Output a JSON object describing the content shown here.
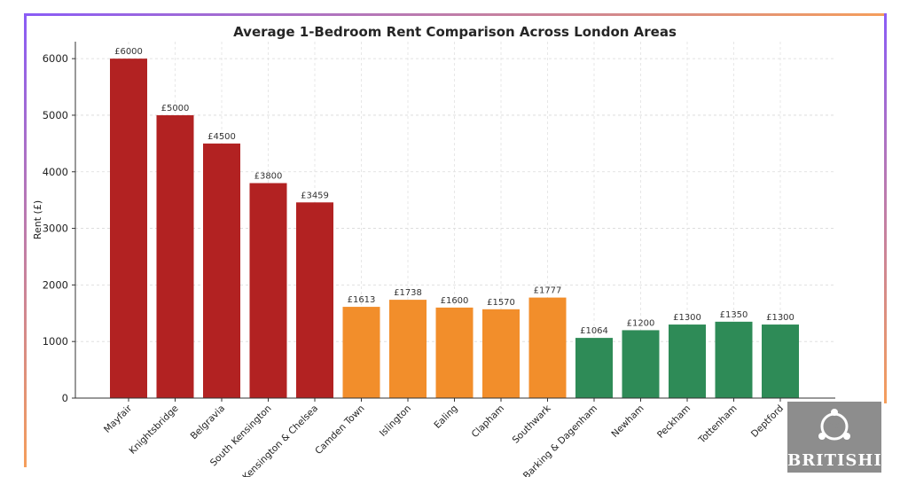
{
  "chart_data": {
    "type": "bar",
    "title": "Average 1-Bedroom Rent Comparison Across London Areas",
    "xlabel": "",
    "ylabel": "Rent (£)",
    "ylim": [
      0,
      6300
    ],
    "yticks": [
      "0",
      "1000",
      "2000",
      "3000",
      "4000",
      "5000",
      "6000"
    ],
    "grid": true,
    "categories": [
      "Mayfair",
      "Knightsbridge",
      "Belgravia",
      "South Kensington",
      "Kensington & Chelsea",
      "Camden Town",
      "Islington",
      "Ealing",
      "Clapham",
      "Southwark",
      "Barking & Dagenham",
      "Newham",
      "Peckham",
      "Tottenham",
      "Deptford"
    ],
    "values": [
      6000,
      5000,
      4500,
      3800,
      3459,
      1613,
      1738,
      1600,
      1570,
      1777,
      1064,
      1200,
      1300,
      1350,
      1300
    ],
    "labels": [
      "£6000",
      "£5000",
      "£4500",
      "£3800",
      "£3459",
      "£1613",
      "£1738",
      "£1600",
      "£1570",
      "£1777",
      "£1064",
      "£1200",
      "£1300",
      "£1350",
      "£1300"
    ],
    "bar_colors": [
      "#b22222",
      "#b22222",
      "#b22222",
      "#b22222",
      "#b22222",
      "#f28e2b",
      "#f28e2b",
      "#f28e2b",
      "#f28e2b",
      "#f28e2b",
      "#2e8b57",
      "#2e8b57",
      "#2e8b57",
      "#2e8b57",
      "#2e8b57"
    ]
  },
  "logo": {
    "text": "BRITISHI"
  },
  "frame_colors": {
    "start": "#8a5cf6",
    "end": "#f59e5b"
  }
}
